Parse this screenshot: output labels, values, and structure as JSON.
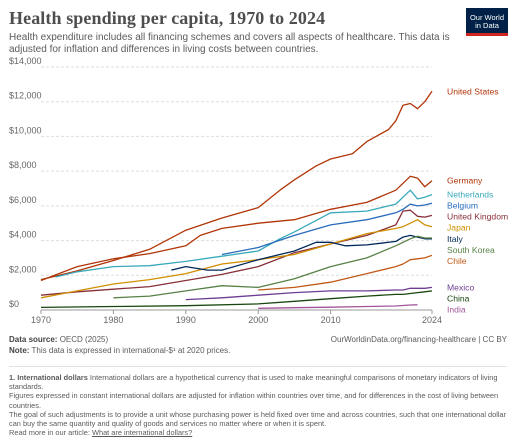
{
  "header": {
    "title": "Health spending per capita, 1970 to 2024",
    "subtitle": "Health expenditure includes all financing schemes and covers all aspects of healthcare. This data is adjusted for inflation and differences in living costs between countries.",
    "logo_line1": "Our World",
    "logo_line2": "in Data",
    "logo_color": "#002147",
    "logo_accent": "#ce261e"
  },
  "footer": {
    "source_label": "Data source:",
    "source_text": "OECD (2025)",
    "url": "OurWorldinData.org/financing-healthcare | CC BY",
    "note_label": "Note:",
    "note_text": "This data is expressed in international-$¹ at 2020 prices.",
    "footnote_title": "1. International dollars",
    "footnote_1": "International dollars are a hypothetical currency that is used to make meaningful comparisons of monetary indicators of living standards.",
    "footnote_2": "Figures expressed in constant international dollars are adjusted for inflation within countries over time, and for differences in the cost of living between countries.",
    "footnote_3": "The goal of such adjustments is to provide a unit whose purchasing power is held fixed over time and across countries, such that one international dollar can buy the same quantity and quality of goods and services no matter where or when it is spent.",
    "read_more": "Read more in our article:",
    "read_more_link": "What are international dollars?"
  },
  "chart_data": {
    "type": "line",
    "xlim": [
      1970,
      2024
    ],
    "ylim": [
      0,
      14000
    ],
    "x_ticks": [
      1970,
      1980,
      1990,
      2000,
      2010,
      2024
    ],
    "y_ticks": [
      0,
      2000,
      4000,
      6000,
      8000,
      10000,
      12000,
      14000
    ],
    "y_tick_labels": [
      "$0",
      "$2,000",
      "$4,000",
      "$6,000",
      "$8,000",
      "$10,000",
      "$12,000",
      "$14,000"
    ],
    "grid": true,
    "legend": "labels at right end of lines",
    "series": [
      {
        "name": "United States",
        "color": "#b13507",
        "points": [
          [
            1970,
            1750
          ],
          [
            1975,
            2250
          ],
          [
            1980,
            2850
          ],
          [
            1985,
            3500
          ],
          [
            1990,
            4600
          ],
          [
            1995,
            5300
          ],
          [
            2000,
            5900
          ],
          [
            2003,
            6900
          ],
          [
            2005,
            7500
          ],
          [
            2008,
            8300
          ],
          [
            2010,
            8700
          ],
          [
            2013,
            9000
          ],
          [
            2015,
            9700
          ],
          [
            2018,
            10400
          ],
          [
            2019,
            10900
          ],
          [
            2020,
            11800
          ],
          [
            2021,
            11900
          ],
          [
            2022,
            11600
          ],
          [
            2023,
            12000
          ],
          [
            2024,
            12600
          ]
        ]
      },
      {
        "name": "Germany",
        "color": "#b13507",
        "points": [
          [
            1970,
            1700
          ],
          [
            1975,
            2500
          ],
          [
            1980,
            2950
          ],
          [
            1985,
            3250
          ],
          [
            1990,
            3700
          ],
          [
            1992,
            4300
          ],
          [
            1995,
            4700
          ],
          [
            2000,
            5000
          ],
          [
            2005,
            5200
          ],
          [
            2010,
            5800
          ],
          [
            2015,
            6200
          ],
          [
            2019,
            6900
          ],
          [
            2020,
            7300
          ],
          [
            2021,
            7700
          ],
          [
            2022,
            7600
          ],
          [
            2023,
            7100
          ],
          [
            2024,
            7450
          ]
        ]
      },
      {
        "name": "Netherlands",
        "color": "#38aaba",
        "points": [
          [
            1972,
            1900
          ],
          [
            1975,
            2200
          ],
          [
            1980,
            2500
          ],
          [
            1985,
            2550
          ],
          [
            1990,
            2800
          ],
          [
            1995,
            3100
          ],
          [
            2000,
            3400
          ],
          [
            2003,
            4100
          ],
          [
            2005,
            4500
          ],
          [
            2010,
            5600
          ],
          [
            2015,
            5700
          ],
          [
            2019,
            6100
          ],
          [
            2020,
            6500
          ],
          [
            2021,
            6900
          ],
          [
            2022,
            6400
          ],
          [
            2023,
            6500
          ],
          [
            2024,
            6650
          ]
        ]
      },
      {
        "name": "Belgium",
        "color": "#286bbb",
        "points": [
          [
            1995,
            3200
          ],
          [
            2000,
            3600
          ],
          [
            2005,
            4300
          ],
          [
            2010,
            4900
          ],
          [
            2015,
            5200
          ],
          [
            2019,
            5600
          ],
          [
            2020,
            5800
          ],
          [
            2021,
            6100
          ],
          [
            2022,
            6000
          ],
          [
            2023,
            6050
          ],
          [
            2024,
            6150
          ]
        ]
      },
      {
        "name": "United Kingdom",
        "color": "#883039",
        "points": [
          [
            1970,
            850
          ],
          [
            1975,
            1050
          ],
          [
            1980,
            1200
          ],
          [
            1985,
            1350
          ],
          [
            1990,
            1700
          ],
          [
            1995,
            2050
          ],
          [
            2000,
            2500
          ],
          [
            2005,
            3300
          ],
          [
            2010,
            3800
          ],
          [
            2015,
            4300
          ],
          [
            2019,
            4900
          ],
          [
            2020,
            5700
          ],
          [
            2021,
            5750
          ],
          [
            2022,
            5400
          ],
          [
            2023,
            5350
          ],
          [
            2024,
            5450
          ]
        ]
      },
      {
        "name": "Japan",
        "color": "#cf8f00",
        "points": [
          [
            1970,
            700
          ],
          [
            1975,
            1100
          ],
          [
            1980,
            1500
          ],
          [
            1985,
            1750
          ],
          [
            1990,
            2100
          ],
          [
            1995,
            2650
          ],
          [
            2000,
            2900
          ],
          [
            2005,
            3200
          ],
          [
            2010,
            3800
          ],
          [
            2015,
            4400
          ],
          [
            2019,
            4700
          ],
          [
            2020,
            4800
          ],
          [
            2021,
            5000
          ],
          [
            2022,
            5200
          ],
          [
            2023,
            4900
          ],
          [
            2024,
            4800
          ]
        ]
      },
      {
        "name": "Italy",
        "color": "#00295b",
        "points": [
          [
            1988,
            2300
          ],
          [
            1990,
            2500
          ],
          [
            1993,
            2300
          ],
          [
            1995,
            2300
          ],
          [
            2000,
            2900
          ],
          [
            2005,
            3400
          ],
          [
            2008,
            3900
          ],
          [
            2010,
            3900
          ],
          [
            2012,
            3700
          ],
          [
            2015,
            3750
          ],
          [
            2019,
            3950
          ],
          [
            2020,
            4200
          ],
          [
            2021,
            4300
          ],
          [
            2022,
            4200
          ],
          [
            2023,
            4100
          ],
          [
            2024,
            4100
          ]
        ]
      },
      {
        "name": "South Korea",
        "color": "#578145",
        "points": [
          [
            1980,
            700
          ],
          [
            1985,
            800
          ],
          [
            1990,
            1100
          ],
          [
            1995,
            1400
          ],
          [
            2000,
            1300
          ],
          [
            2005,
            1800
          ],
          [
            2010,
            2500
          ],
          [
            2015,
            3000
          ],
          [
            2019,
            3700
          ],
          [
            2020,
            3900
          ],
          [
            2021,
            4100
          ],
          [
            2022,
            4250
          ],
          [
            2023,
            4150
          ],
          [
            2024,
            4150
          ]
        ]
      },
      {
        "name": "Chile",
        "color": "#c05917",
        "points": [
          [
            2000,
            1150
          ],
          [
            2005,
            1300
          ],
          [
            2010,
            1600
          ],
          [
            2015,
            2100
          ],
          [
            2019,
            2500
          ],
          [
            2020,
            2650
          ],
          [
            2021,
            2900
          ],
          [
            2022,
            2950
          ],
          [
            2023,
            3000
          ],
          [
            2024,
            3150
          ]
        ]
      },
      {
        "name": "Mexico",
        "color": "#6d3e91",
        "points": [
          [
            1990,
            600
          ],
          [
            1995,
            700
          ],
          [
            2000,
            850
          ],
          [
            2005,
            1000
          ],
          [
            2010,
            1100
          ],
          [
            2015,
            1100
          ],
          [
            2019,
            1150
          ],
          [
            2020,
            1150
          ],
          [
            2021,
            1250
          ],
          [
            2022,
            1250
          ],
          [
            2023,
            1250
          ],
          [
            2024,
            1300
          ]
        ]
      },
      {
        "name": "China",
        "color": "#18470f",
        "points": [
          [
            1970,
            150
          ],
          [
            1980,
            200
          ],
          [
            1990,
            250
          ],
          [
            2000,
            350
          ],
          [
            2005,
            500
          ],
          [
            2010,
            650
          ],
          [
            2015,
            800
          ],
          [
            2019,
            900
          ],
          [
            2020,
            900
          ],
          [
            2021,
            950
          ],
          [
            2022,
            1000
          ],
          [
            2023,
            1050
          ],
          [
            2024,
            1100
          ]
        ]
      },
      {
        "name": "India",
        "color": "#a2559c",
        "points": [
          [
            2000,
            100
          ],
          [
            2005,
            130
          ],
          [
            2010,
            160
          ],
          [
            2015,
            200
          ],
          [
            2019,
            230
          ],
          [
            2020,
            260
          ],
          [
            2021,
            290
          ],
          [
            2022,
            300
          ]
        ]
      }
    ]
  }
}
